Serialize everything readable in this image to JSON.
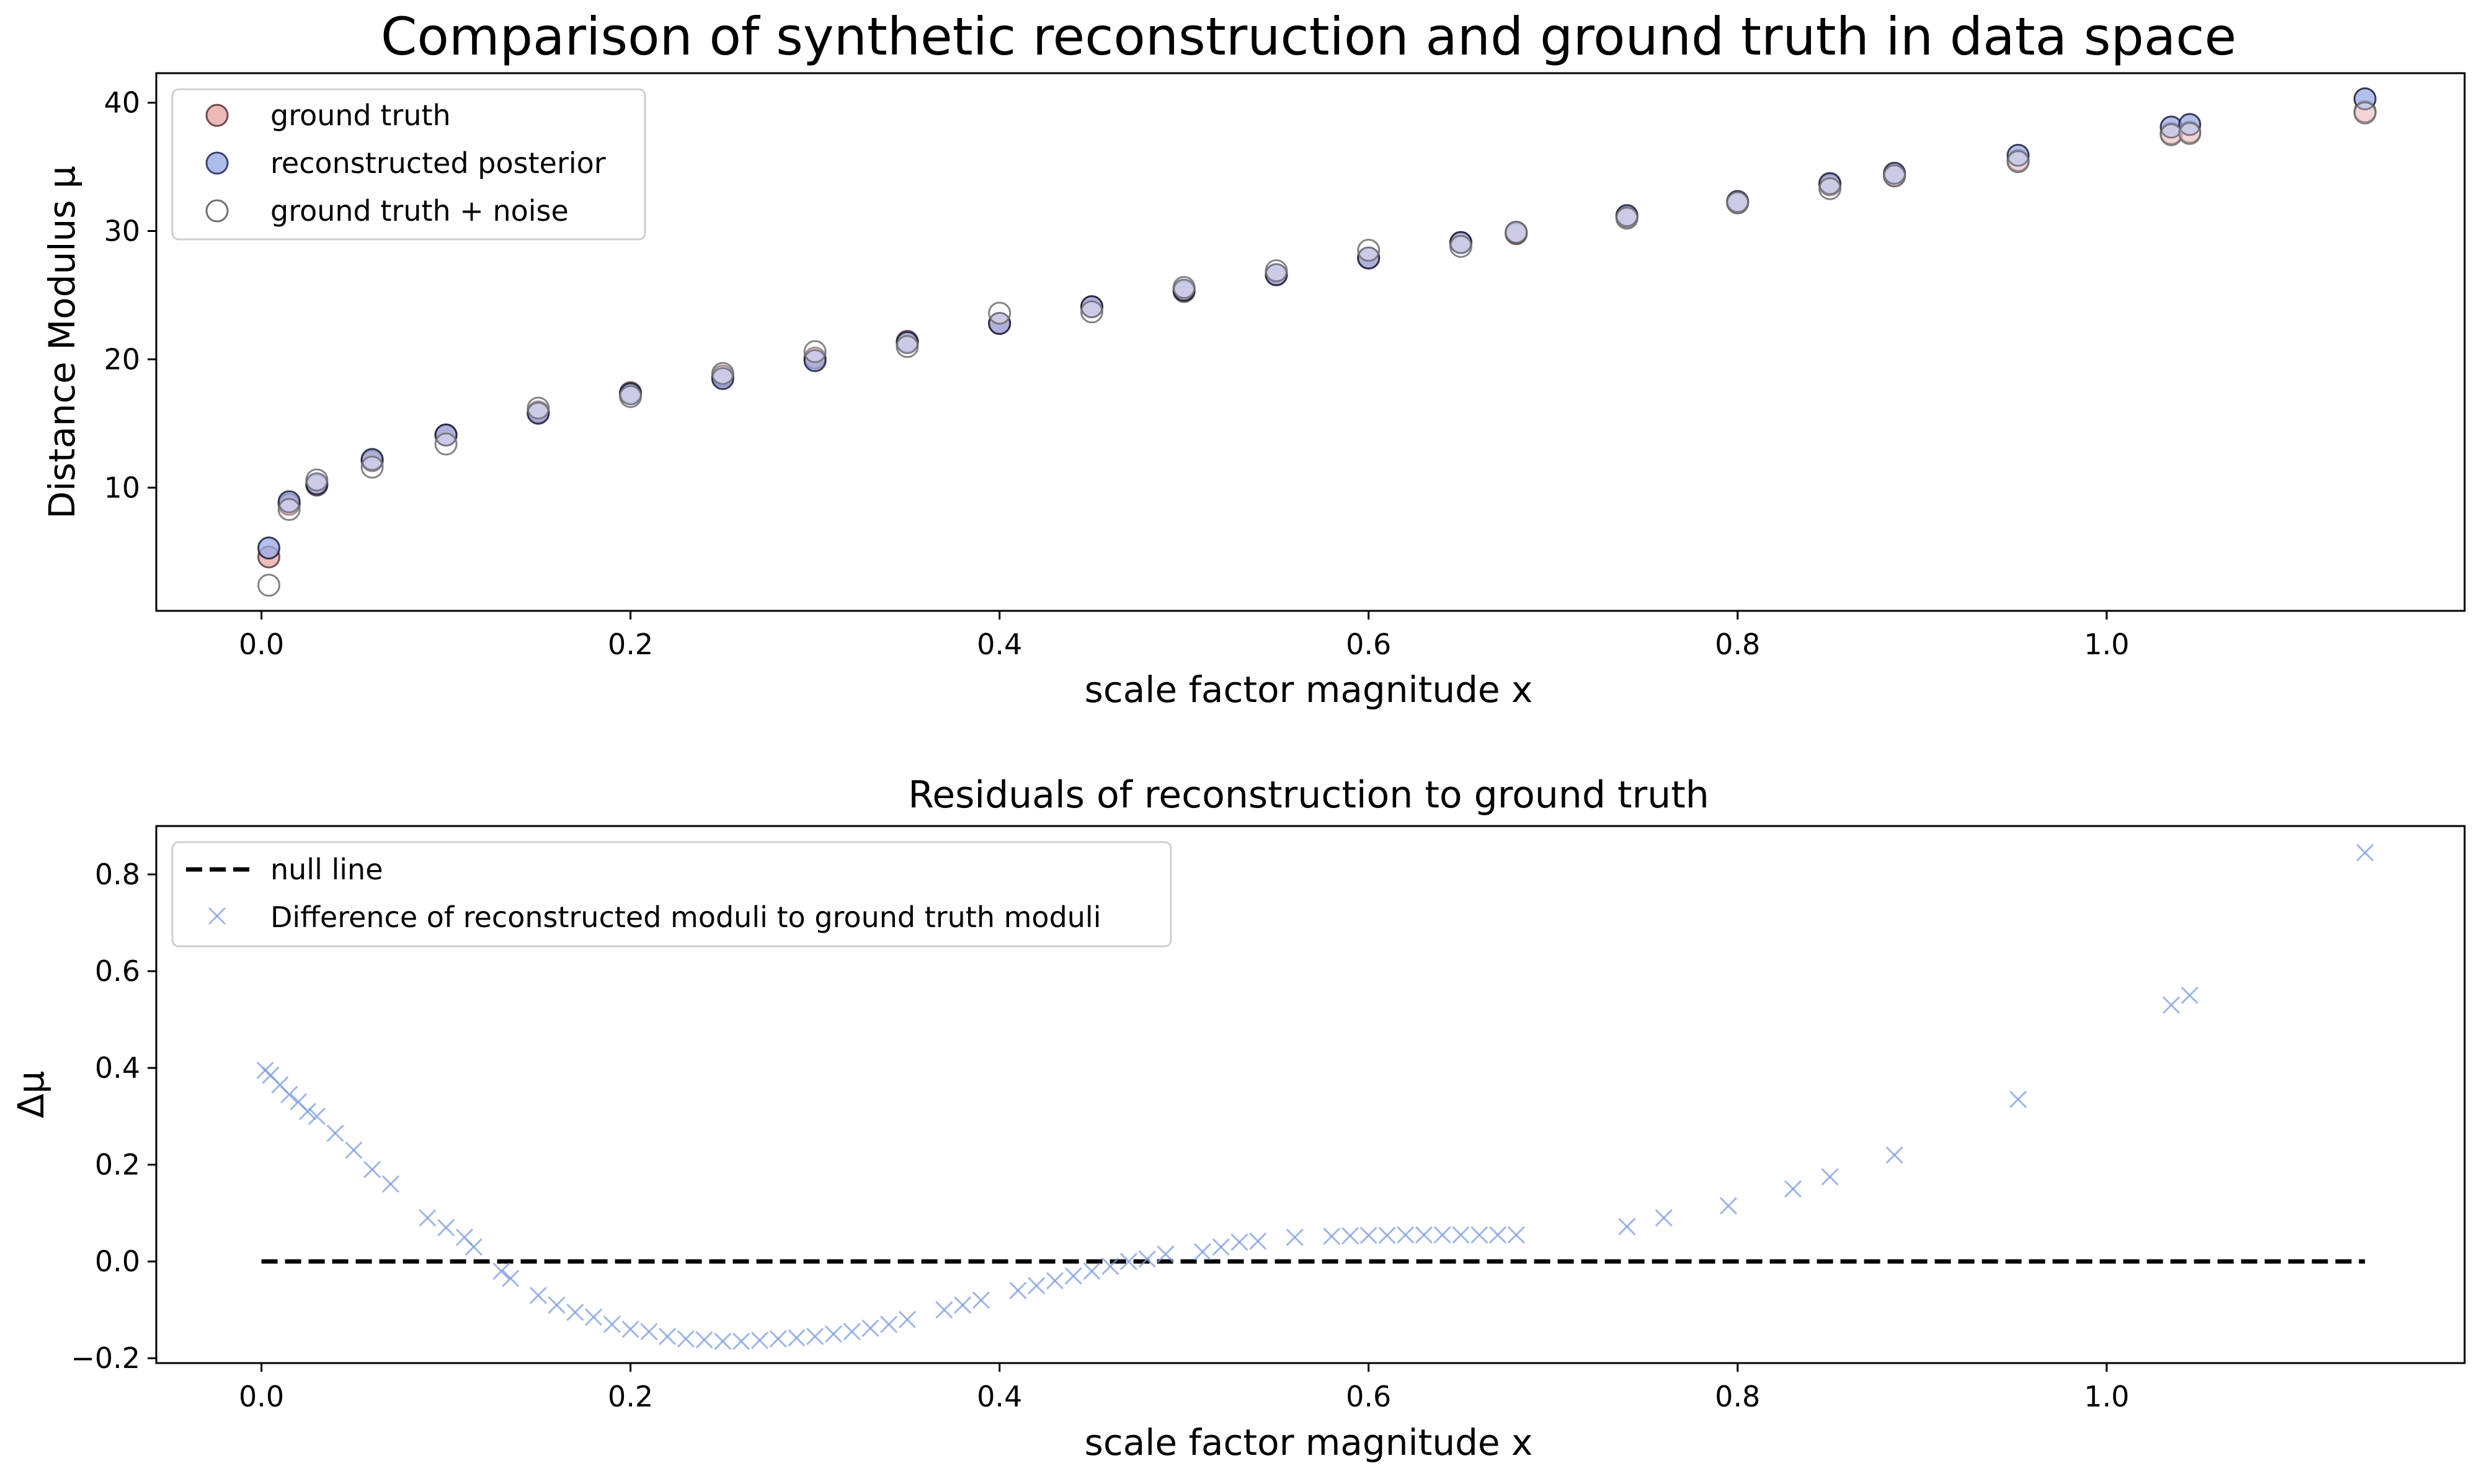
{
  "chart_data": [
    {
      "type": "scatter",
      "title": "Comparison of synthetic reconstruction and ground truth in data space",
      "xlabel": "scale factor magnitude x",
      "ylabel": "Distance Modulus μ",
      "xlim": [
        -0.057,
        1.194
      ],
      "ylim": [
        0.4,
        42.3
      ],
      "xticks": [
        "0.0",
        "0.2",
        "0.4",
        "0.6",
        "0.8",
        "1.0"
      ],
      "yticks": [
        "10",
        "20",
        "30",
        "40"
      ],
      "grid": false,
      "legend_position": "upper-left",
      "legend": [
        "ground truth",
        "reconstructed posterior",
        "ground truth + noise"
      ],
      "colors": {
        "ground_truth": "#e8a6a6",
        "reconstructed": "#9aabe6",
        "noise_edge": "#6f6f6f",
        "edge": "#1b1f3a"
      },
      "series": [
        {
          "name": "ground truth",
          "x": [
            0.004,
            0.015,
            0.03,
            0.06,
            0.1,
            0.15,
            0.2,
            0.25,
            0.3,
            0.35,
            0.4,
            0.45,
            0.5,
            0.55,
            0.6,
            0.65,
            0.68,
            0.74,
            0.8,
            0.85,
            0.885,
            0.952,
            1.035,
            1.045,
            1.14
          ],
          "y": [
            4.6,
            8.7,
            10.2,
            12.1,
            14.1,
            15.9,
            17.4,
            18.7,
            20.1,
            21.4,
            22.8,
            24.1,
            25.3,
            26.6,
            27.9,
            29.1,
            29.8,
            31.1,
            32.2,
            33.6,
            34.3,
            35.5,
            37.6,
            37.7,
            39.3
          ]
        },
        {
          "name": "reconstructed posterior",
          "x": [
            0.004,
            0.015,
            0.03,
            0.06,
            0.1,
            0.15,
            0.2,
            0.25,
            0.3,
            0.35,
            0.4,
            0.45,
            0.5,
            0.55,
            0.6,
            0.65,
            0.68,
            0.74,
            0.8,
            0.85,
            0.885,
            0.952,
            1.035,
            1.045,
            1.14
          ],
          "y": [
            5.3,
            8.9,
            10.3,
            12.2,
            14.1,
            15.8,
            17.3,
            18.5,
            19.9,
            21.3,
            22.8,
            24.1,
            25.4,
            26.6,
            27.9,
            29.1,
            29.9,
            31.2,
            32.3,
            33.7,
            34.5,
            35.9,
            38.1,
            38.3,
            40.3
          ]
        },
        {
          "name": "ground truth + noise",
          "x": [
            0.004,
            0.015,
            0.03,
            0.06,
            0.1,
            0.15,
            0.2,
            0.25,
            0.3,
            0.35,
            0.4,
            0.45,
            0.5,
            0.55,
            0.6,
            0.65,
            0.68,
            0.74,
            0.8,
            0.85,
            0.885,
            0.952,
            1.035,
            1.045,
            1.14
          ],
          "y": [
            2.4,
            8.3,
            10.6,
            11.6,
            13.4,
            16.2,
            17.1,
            18.9,
            20.6,
            21.0,
            23.6,
            23.7,
            25.6,
            26.9,
            28.5,
            28.8,
            29.9,
            31.0,
            32.2,
            33.3,
            34.3,
            35.4,
            37.5,
            37.6,
            39.2
          ]
        }
      ]
    },
    {
      "type": "scatter",
      "title": "Residuals of reconstruction to ground truth",
      "xlabel": "scale factor magnitude x",
      "ylabel": "Δμ",
      "xlim": [
        -0.057,
        1.194
      ],
      "ylim": [
        -0.21,
        0.9
      ],
      "xticks": [
        "0.0",
        "0.2",
        "0.4",
        "0.6",
        "0.8",
        "1.0"
      ],
      "yticks": [
        "−0.2",
        "0.0",
        "0.2",
        "0.4",
        "0.6",
        "0.8"
      ],
      "grid": false,
      "legend_position": "upper-left",
      "legend": [
        "null line",
        "Difference of reconstructed moduli to ground truth moduli"
      ],
      "colors": {
        "null_line": "#000000",
        "difference": "#7d9ee0"
      },
      "null_line": {
        "x": [
          0.0,
          1.14
        ],
        "y": [
          0.0,
          0.0
        ]
      },
      "series": [
        {
          "name": "Difference of reconstructed moduli to ground truth moduli",
          "x": [
            0.002,
            0.005,
            0.01,
            0.015,
            0.02,
            0.025,
            0.03,
            0.04,
            0.05,
            0.06,
            0.07,
            0.09,
            0.1,
            0.11,
            0.115,
            0.13,
            0.135,
            0.15,
            0.16,
            0.17,
            0.18,
            0.19,
            0.2,
            0.21,
            0.22,
            0.23,
            0.24,
            0.25,
            0.26,
            0.27,
            0.28,
            0.29,
            0.3,
            0.31,
            0.32,
            0.33,
            0.34,
            0.35,
            0.37,
            0.38,
            0.39,
            0.41,
            0.42,
            0.43,
            0.44,
            0.45,
            0.46,
            0.47,
            0.48,
            0.49,
            0.51,
            0.52,
            0.53,
            0.54,
            0.56,
            0.58,
            0.59,
            0.6,
            0.61,
            0.62,
            0.63,
            0.64,
            0.65,
            0.66,
            0.67,
            0.68,
            0.74,
            0.76,
            0.795,
            0.83,
            0.85,
            0.885,
            0.952,
            1.035,
            1.045,
            1.14
          ],
          "y": [
            0.395,
            0.385,
            0.365,
            0.345,
            0.33,
            0.31,
            0.3,
            0.265,
            0.23,
            0.19,
            0.16,
            0.09,
            0.07,
            0.05,
            0.03,
            -0.02,
            -0.035,
            -0.07,
            -0.09,
            -0.105,
            -0.115,
            -0.13,
            -0.14,
            -0.145,
            -0.155,
            -0.16,
            -0.162,
            -0.165,
            -0.165,
            -0.163,
            -0.16,
            -0.158,
            -0.155,
            -0.15,
            -0.145,
            -0.138,
            -0.13,
            -0.12,
            -0.1,
            -0.09,
            -0.08,
            -0.06,
            -0.05,
            -0.04,
            -0.03,
            -0.02,
            -0.01,
            0.0,
            0.005,
            0.015,
            0.02,
            0.03,
            0.04,
            0.042,
            0.05,
            0.052,
            0.053,
            0.054,
            0.054,
            0.055,
            0.055,
            0.055,
            0.055,
            0.055,
            0.055,
            0.055,
            0.072,
            0.09,
            0.115,
            0.15,
            0.175,
            0.22,
            0.335,
            0.53,
            0.55,
            0.845
          ]
        }
      ]
    }
  ]
}
